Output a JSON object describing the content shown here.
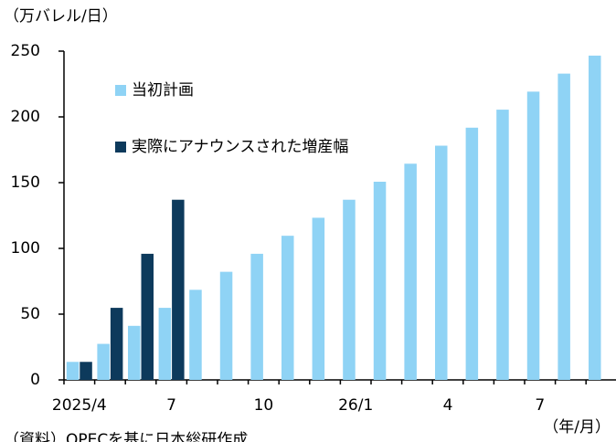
{
  "chart_data": {
    "type": "bar",
    "y_label": "（万バレル/日）",
    "x_label": "（年/月）",
    "source": "（資料）OPECを基に日本総研作成",
    "categories": [
      "2025/4",
      null,
      null,
      "7",
      null,
      null,
      "10",
      null,
      null,
      "26/1",
      null,
      null,
      "4",
      null,
      null,
      "7",
      null,
      null
    ],
    "series": [
      {
        "name": "当初計画",
        "color": "#8fd3f5",
        "values": [
          13.7,
          27.4,
          41.1,
          54.8,
          68.5,
          82.2,
          95.9,
          109.6,
          123.3,
          137,
          150.7,
          164.4,
          178.1,
          191.8,
          205.5,
          219.2,
          232.9,
          246.6
        ]
      },
      {
        "name": "実際にアナウンスされた増産幅",
        "color": "#0d3a5c",
        "values": [
          13.7,
          54.8,
          95.9,
          137,
          null,
          null,
          null,
          null,
          null,
          null,
          null,
          null,
          null,
          null,
          null,
          null,
          null,
          null
        ]
      }
    ],
    "ylim": [
      0,
      250
    ],
    "yticks": [
      0,
      50,
      100,
      150,
      200,
      250
    ]
  }
}
